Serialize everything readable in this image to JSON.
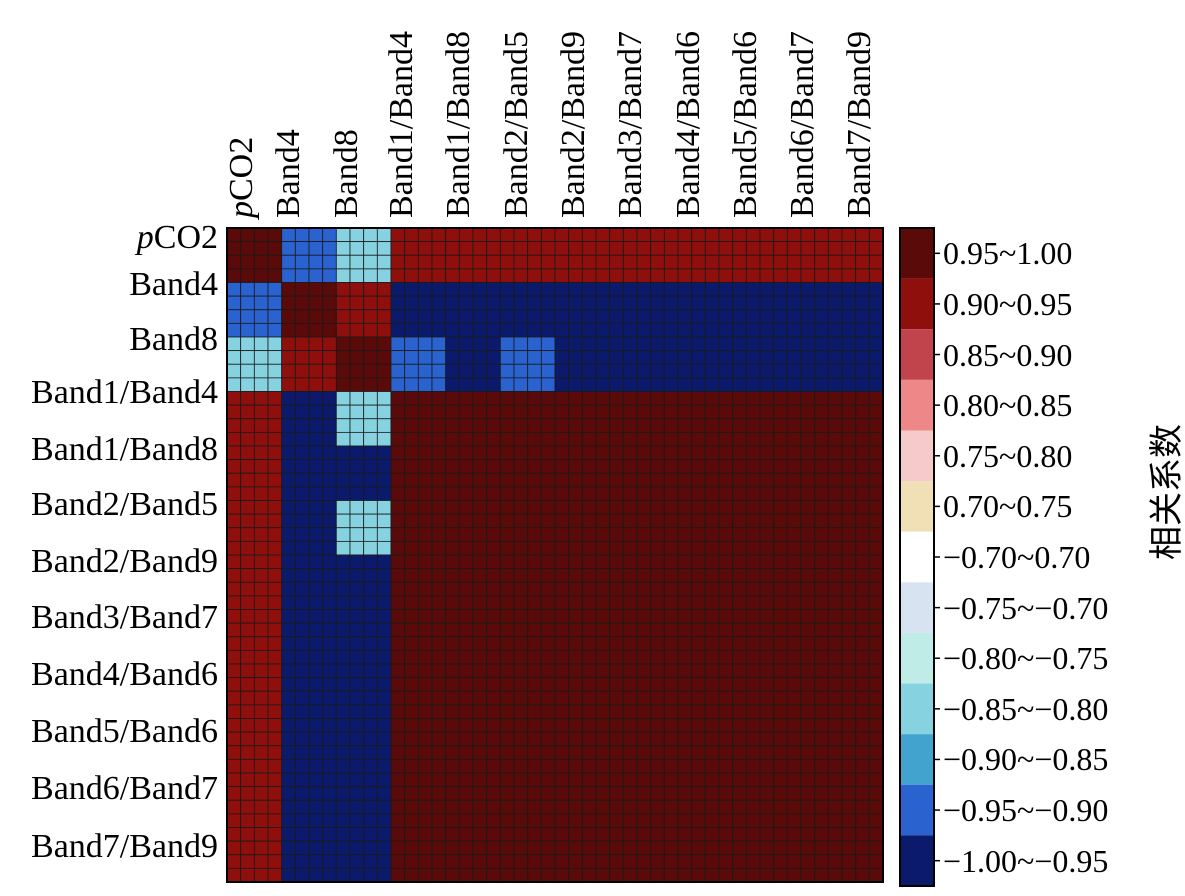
{
  "chart_data": {
    "type": "heatmap",
    "row_labels": [
      "pCO2",
      "Band4",
      "Band8",
      "Band1/Band4",
      "Band1/Band8",
      "Band2/Band5",
      "Band2/Band9",
      "Band3/Band7",
      "Band4/Band6",
      "Band5/Band6",
      "Band6/Band7",
      "Band7/Band9"
    ],
    "column_labels": [
      "pCO2",
      "Band4",
      "Band8",
      "Band1/Band4",
      "Band1/Band8",
      "Band2/Band5",
      "Band2/Band9",
      "Band3/Band7",
      "Band4/Band6",
      "Band5/Band6",
      "Band6/Band7",
      "Band7/Band9"
    ],
    "italic_prefix": "p",
    "colorbar": {
      "title": "相关系数",
      "bins": [
        {
          "label": "0.95~1.00",
          "color": "#5a0a08"
        },
        {
          "label": "0.90~0.95",
          "color": "#8f0f0c"
        },
        {
          "label": "0.85~0.90",
          "color": "#c1434b"
        },
        {
          "label": "0.80~0.85",
          "color": "#ee8888"
        },
        {
          "label": "0.75~0.80",
          "color": "#f6caca"
        },
        {
          "label": "0.70~0.75",
          "color": "#f1dfb6"
        },
        {
          "label": "−0.70~0.70",
          "color": "#ffffff"
        },
        {
          "label": "−0.75~−0.70",
          "color": "#d8e3f2"
        },
        {
          "label": "−0.80~−0.75",
          "color": "#c0ece8"
        },
        {
          "label": "−0.85~−0.80",
          "color": "#86d2e0"
        },
        {
          "label": "−0.90~−0.85",
          "color": "#42a3cf"
        },
        {
          "label": "−0.95~−0.90",
          "color": "#2a62d0"
        },
        {
          "label": "−1.00~−0.95",
          "color": "#0b1a6b"
        }
      ]
    },
    "block_values": [
      [
        1.0,
        -0.9,
        -0.8,
        0.9,
        0.9,
        0.9,
        0.9,
        0.9,
        0.9,
        0.9,
        0.9,
        0.9
      ],
      [
        -0.9,
        0.95,
        0.9,
        -0.96,
        -0.96,
        -0.96,
        -0.96,
        -0.96,
        -0.96,
        -0.96,
        -0.96,
        -0.96
      ],
      [
        -0.8,
        0.9,
        0.98,
        -0.9,
        -0.96,
        -0.9,
        -0.96,
        -0.96,
        -0.96,
        -0.96,
        -0.96,
        -0.96
      ],
      [
        0.9,
        -0.96,
        -0.8,
        0.98,
        0.95,
        0.98,
        0.95,
        0.95,
        0.95,
        0.95,
        0.95,
        0.95
      ],
      [
        0.9,
        -0.96,
        -0.96,
        0.95,
        0.98,
        0.95,
        0.98,
        0.98,
        0.98,
        0.98,
        0.98,
        0.98
      ],
      [
        0.9,
        -0.96,
        -0.82,
        0.98,
        0.95,
        0.98,
        0.95,
        0.95,
        0.95,
        0.95,
        0.95,
        0.95
      ],
      [
        0.9,
        -0.96,
        -0.96,
        0.95,
        0.98,
        0.95,
        0.98,
        0.98,
        0.98,
        0.98,
        0.98,
        0.98
      ],
      [
        0.9,
        -0.96,
        -0.96,
        0.95,
        0.98,
        0.95,
        0.98,
        0.98,
        0.98,
        0.98,
        0.98,
        0.98
      ],
      [
        0.9,
        -0.96,
        -0.96,
        0.95,
        0.98,
        0.95,
        0.98,
        0.98,
        0.98,
        0.98,
        0.98,
        0.98
      ],
      [
        0.9,
        -0.96,
        -0.96,
        0.95,
        0.98,
        0.95,
        0.98,
        0.98,
        0.98,
        0.98,
        0.98,
        0.98
      ],
      [
        0.9,
        -0.96,
        -0.96,
        0.95,
        0.98,
        0.95,
        0.98,
        0.98,
        0.98,
        0.98,
        0.98,
        0.98
      ],
      [
        0.9,
        -0.96,
        -0.96,
        0.95,
        0.98,
        0.95,
        0.98,
        0.98,
        0.98,
        0.98,
        0.98,
        0.98
      ]
    ],
    "grid": true,
    "legend_position": "right"
  }
}
